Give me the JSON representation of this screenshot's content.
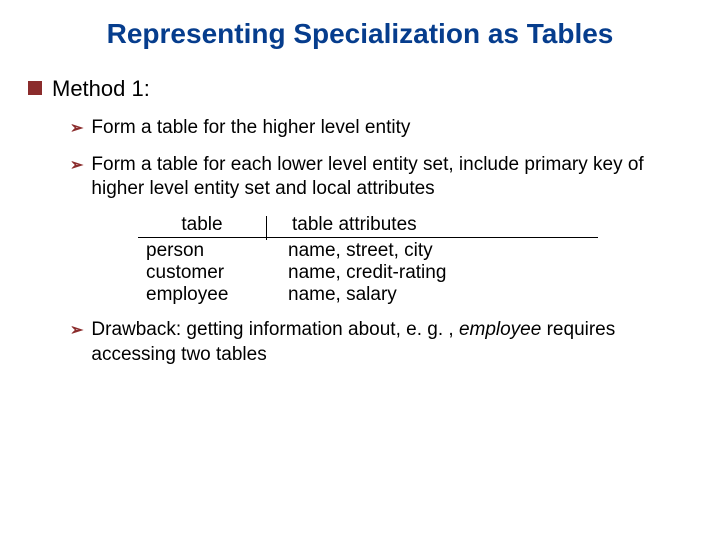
{
  "title": "Representing Specialization as Tables",
  "method_label": "Method 1:",
  "bullets": {
    "b1": "Form a table for the higher level entity",
    "b2": "Form a table for each lower level entity set, include primary key of higher level entity set and local attributes",
    "b3_prefix": "Drawback:  getting information about, e. g. , ",
    "b3_em": "employee",
    "b3_suffix": " requires accessing two tables"
  },
  "table": {
    "header_left": "table",
    "header_right": "table attributes",
    "rows": [
      {
        "name": "person",
        "attrs": "name, street, city"
      },
      {
        "name": "customer",
        "attrs": "name, credit-rating"
      },
      {
        "name": "employee",
        "attrs": "name, salary"
      }
    ]
  },
  "colors": {
    "title": "#063d8d",
    "bullet": "#8b2c2c",
    "text": "#000000",
    "background": "#ffffff"
  }
}
